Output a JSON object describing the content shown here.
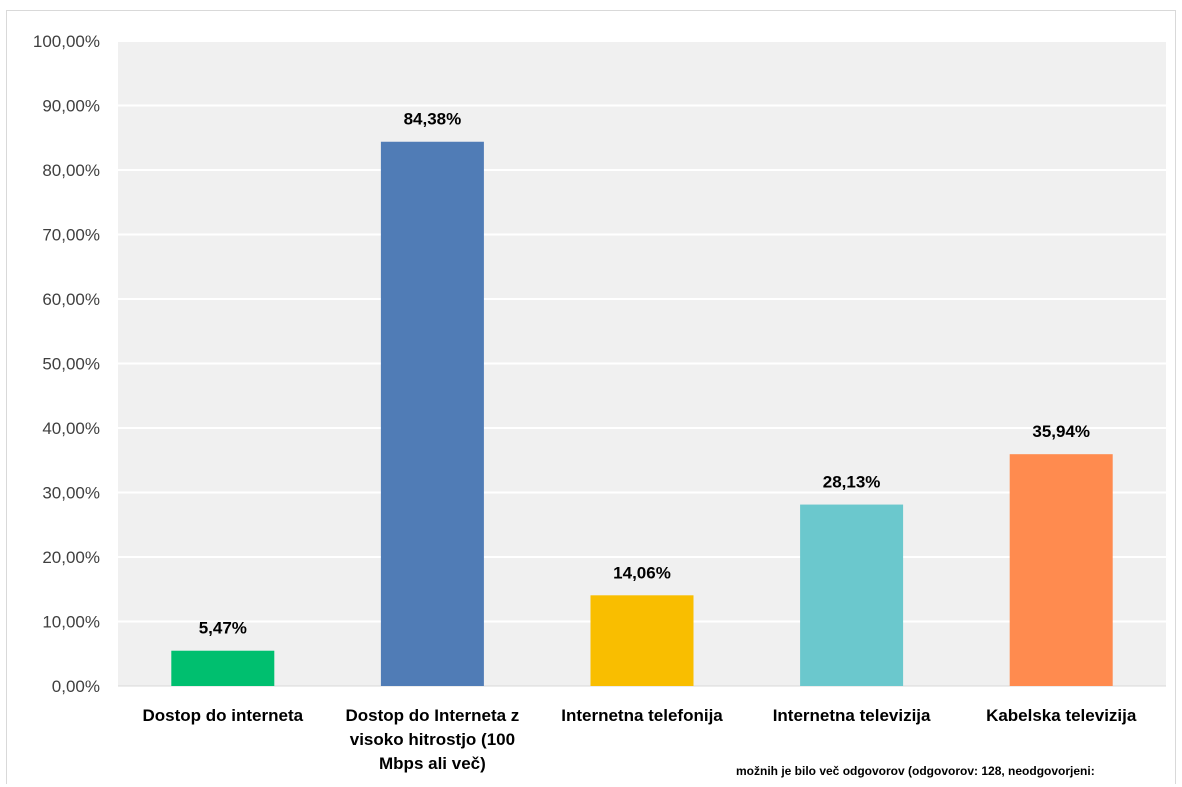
{
  "chart_data": {
    "type": "bar",
    "title": "",
    "xlabel": "",
    "ylabel": "",
    "categories": [
      [
        "Dostop do interneta"
      ],
      [
        "Dostop do Interneta z",
        "visoko hitrostjo (100",
        "Mbps ali več)"
      ],
      [
        "Internetna telefonija"
      ],
      [
        "Internetna televizija"
      ],
      [
        "Kabelska televizija"
      ]
    ],
    "values": [
      5.47,
      84.38,
      14.06,
      28.13,
      35.94
    ],
    "data_labels": [
      "5,47%",
      "84,38%",
      "14,06%",
      "28,13%",
      "35,94%"
    ],
    "colors": [
      "#00bf6f",
      "#507cb6",
      "#f9be00",
      "#6bc8cd",
      "#ff8b4f"
    ],
    "ylim": [
      0,
      100
    ],
    "yticks": [
      0,
      10,
      20,
      30,
      40,
      50,
      60,
      70,
      80,
      90,
      100
    ],
    "ytick_labels": [
      "0,00%",
      "10,00%",
      "20,00%",
      "30,00%",
      "40,00%",
      "50,00%",
      "60,00%",
      "70,00%",
      "80,00%",
      "90,00%",
      "100,00%"
    ],
    "grid": true,
    "plot_background": "#f0f0f0",
    "gridline_color": "#ffffff",
    "legend": "none"
  },
  "footnote": "možnih je bilo več odgovorov (odgovorov: 128, neodgovorjeni:"
}
